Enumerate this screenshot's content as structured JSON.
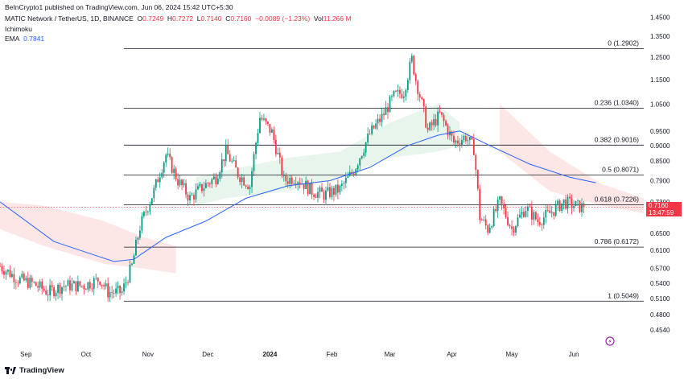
{
  "header": {
    "published": "BeInCrypto1 published on TradingView.com, Jun 06, 2024 15:42 UTC+5:30",
    "symbol": "MATIC Network / TetherUS, 1D, BINANCE",
    "o_label": "O",
    "o_value": "0.7249",
    "h_label": "H",
    "h_value": "0.7272",
    "l_label": "L",
    "l_value": "0.7140",
    "c_label": "C",
    "c_value": "0.7160",
    "change": "−0.0089 (−1.23%)",
    "vol_label": "Vol",
    "vol_value": "11.266 M",
    "ichimoku_label": "Ichimoku",
    "ema_label": "EMA",
    "ema_value": "0.7841"
  },
  "badge": {
    "price": "0.7160",
    "countdown": "13:47:59"
  },
  "footer": {
    "logo_text": "TradingView"
  },
  "colors": {
    "up": "#089981",
    "down": "#f23645",
    "ema": "#2962ff",
    "cloud_bull": "#e6f4ea",
    "cloud_bear": "#fde3e3",
    "fib_line": "#131722"
  },
  "chart_data": {
    "type": "candlestick",
    "y_scale": "log",
    "ylim": [
      0.43,
      1.5
    ],
    "yticks": [
      "1.4500",
      "1.3500",
      "1.2500",
      "1.1500",
      "1.0500",
      "0.9500",
      "0.9000",
      "0.8500",
      "0.7900",
      "0.7300",
      "0.6500",
      "0.6100",
      "0.5700",
      "0.5400",
      "0.5100",
      "0.4800",
      "0.4540"
    ],
    "x_labels": [
      {
        "label": "Sep",
        "date": "2023-09-01"
      },
      {
        "label": "Oct",
        "date": "2023-10-01"
      },
      {
        "label": "Nov",
        "date": "2023-11-01"
      },
      {
        "label": "Dec",
        "date": "2023-12-01"
      },
      {
        "label": "2024",
        "date": "2024-01-01"
      },
      {
        "label": "Feb",
        "date": "2024-02-01"
      },
      {
        "label": "Mar",
        "date": "2024-03-01"
      },
      {
        "label": "Apr",
        "date": "2024-04-01"
      },
      {
        "label": "May",
        "date": "2024-05-01"
      },
      {
        "label": "Jun",
        "date": "2024-06-01"
      }
    ],
    "x_range": [
      "2023-08-19",
      "2024-07-06"
    ],
    "fib_start": "2023-10-20",
    "fib_end": "2024-07-06",
    "fib_levels": [
      {
        "label": "0 (1.2902)",
        "value": 1.2902
      },
      {
        "label": "0.236 (1.0340)",
        "value": 1.034
      },
      {
        "label": "0.382 (0.9016)",
        "value": 0.9016
      },
      {
        "label": "0.5 (0.8071)",
        "value": 0.8071
      },
      {
        "label": "0.618 (0.7226)",
        "value": 0.7226
      },
      {
        "label": "0.786 (0.6172)",
        "value": 0.6172
      },
      {
        "label": "1 (0.5049)",
        "value": 0.5049
      }
    ],
    "last_price": 0.716,
    "price_path": [
      [
        "2023-08-19",
        0.575
      ],
      [
        "2023-08-28",
        0.548
      ],
      [
        "2023-09-05",
        0.538
      ],
      [
        "2023-09-12",
        0.522
      ],
      [
        "2023-09-20",
        0.535
      ],
      [
        "2023-09-30",
        0.535
      ],
      [
        "2023-10-08",
        0.548
      ],
      [
        "2023-10-12",
        0.522
      ],
      [
        "2023-10-19",
        0.522
      ],
      [
        "2023-10-24",
        0.575
      ],
      [
        "2023-10-28",
        0.665
      ],
      [
        "2023-11-04",
        0.76
      ],
      [
        "2023-11-10",
        0.87
      ],
      [
        "2023-11-16",
        0.79
      ],
      [
        "2023-11-22",
        0.74
      ],
      [
        "2023-11-28",
        0.77
      ],
      [
        "2023-12-05",
        0.8
      ],
      [
        "2023-12-10",
        0.88
      ],
      [
        "2023-12-16",
        0.81
      ],
      [
        "2023-12-22",
        0.775
      ],
      [
        "2023-12-27",
        1.0
      ],
      [
        "2024-01-02",
        0.945
      ],
      [
        "2024-01-08",
        0.79
      ],
      [
        "2024-01-14",
        0.8
      ],
      [
        "2024-01-22",
        0.76
      ],
      [
        "2024-01-28",
        0.75
      ],
      [
        "2024-02-05",
        0.765
      ],
      [
        "2024-02-12",
        0.82
      ],
      [
        "2024-02-20",
        0.94
      ],
      [
        "2024-02-26",
        1.0
      ],
      [
        "2024-03-03",
        1.08
      ],
      [
        "2024-03-08",
        1.1
      ],
      [
        "2024-03-12",
        1.24
      ],
      [
        "2024-03-14",
        1.15
      ],
      [
        "2024-03-20",
        0.95
      ],
      [
        "2024-03-26",
        1.01
      ],
      [
        "2024-04-02",
        0.91
      ],
      [
        "2024-04-08",
        0.93
      ],
      [
        "2024-04-12",
        0.89
      ],
      [
        "2024-04-15",
        0.69
      ],
      [
        "2024-04-19",
        0.66
      ],
      [
        "2024-04-25",
        0.73
      ],
      [
        "2024-05-01",
        0.66
      ],
      [
        "2024-05-08",
        0.715
      ],
      [
        "2024-05-14",
        0.68
      ],
      [
        "2024-05-20",
        0.7
      ],
      [
        "2024-05-27",
        0.73
      ],
      [
        "2024-06-03",
        0.718
      ],
      [
        "2024-06-06",
        0.716
      ]
    ],
    "ema_path": [
      [
        "2023-08-19",
        0.73
      ],
      [
        "2023-09-15",
        0.63
      ],
      [
        "2023-10-15",
        0.585
      ],
      [
        "2023-10-25",
        0.59
      ],
      [
        "2023-11-10",
        0.64
      ],
      [
        "2023-11-30",
        0.68
      ],
      [
        "2023-12-20",
        0.74
      ],
      [
        "2024-01-10",
        0.775
      ],
      [
        "2024-01-31",
        0.79
      ],
      [
        "2024-02-20",
        0.83
      ],
      [
        "2024-03-10",
        0.9
      ],
      [
        "2024-03-25",
        0.935
      ],
      [
        "2024-04-05",
        0.95
      ],
      [
        "2024-04-20",
        0.9
      ],
      [
        "2024-05-10",
        0.84
      ],
      [
        "2024-05-30",
        0.8
      ],
      [
        "2024-06-12",
        0.784
      ]
    ],
    "cloud_bull": [
      [
        "2023-11-25",
        0.8,
        0.72
      ],
      [
        "2023-12-10",
        0.82,
        0.74
      ],
      [
        "2024-01-10",
        0.86,
        0.76
      ],
      [
        "2024-02-05",
        0.88,
        0.8
      ],
      [
        "2024-03-01",
        0.98,
        0.86
      ],
      [
        "2024-03-25",
        1.05,
        0.88
      ],
      [
        "2024-04-05",
        0.98,
        0.9
      ]
    ],
    "cloud_bear": [
      [
        "2023-08-19",
        0.73,
        0.66
      ],
      [
        "2023-09-10",
        0.72,
        0.62
      ],
      [
        "2023-10-10",
        0.68,
        0.58
      ],
      [
        "2023-10-30",
        0.64,
        0.57
      ],
      [
        "2023-11-15",
        0.62,
        0.56
      ],
      [
        "2024-04-25",
        1.05,
        0.88
      ],
      [
        "2024-05-20",
        0.88,
        0.76
      ],
      [
        "2024-06-15",
        0.78,
        0.72
      ],
      [
        "2024-07-06",
        0.74,
        0.7
      ]
    ]
  }
}
